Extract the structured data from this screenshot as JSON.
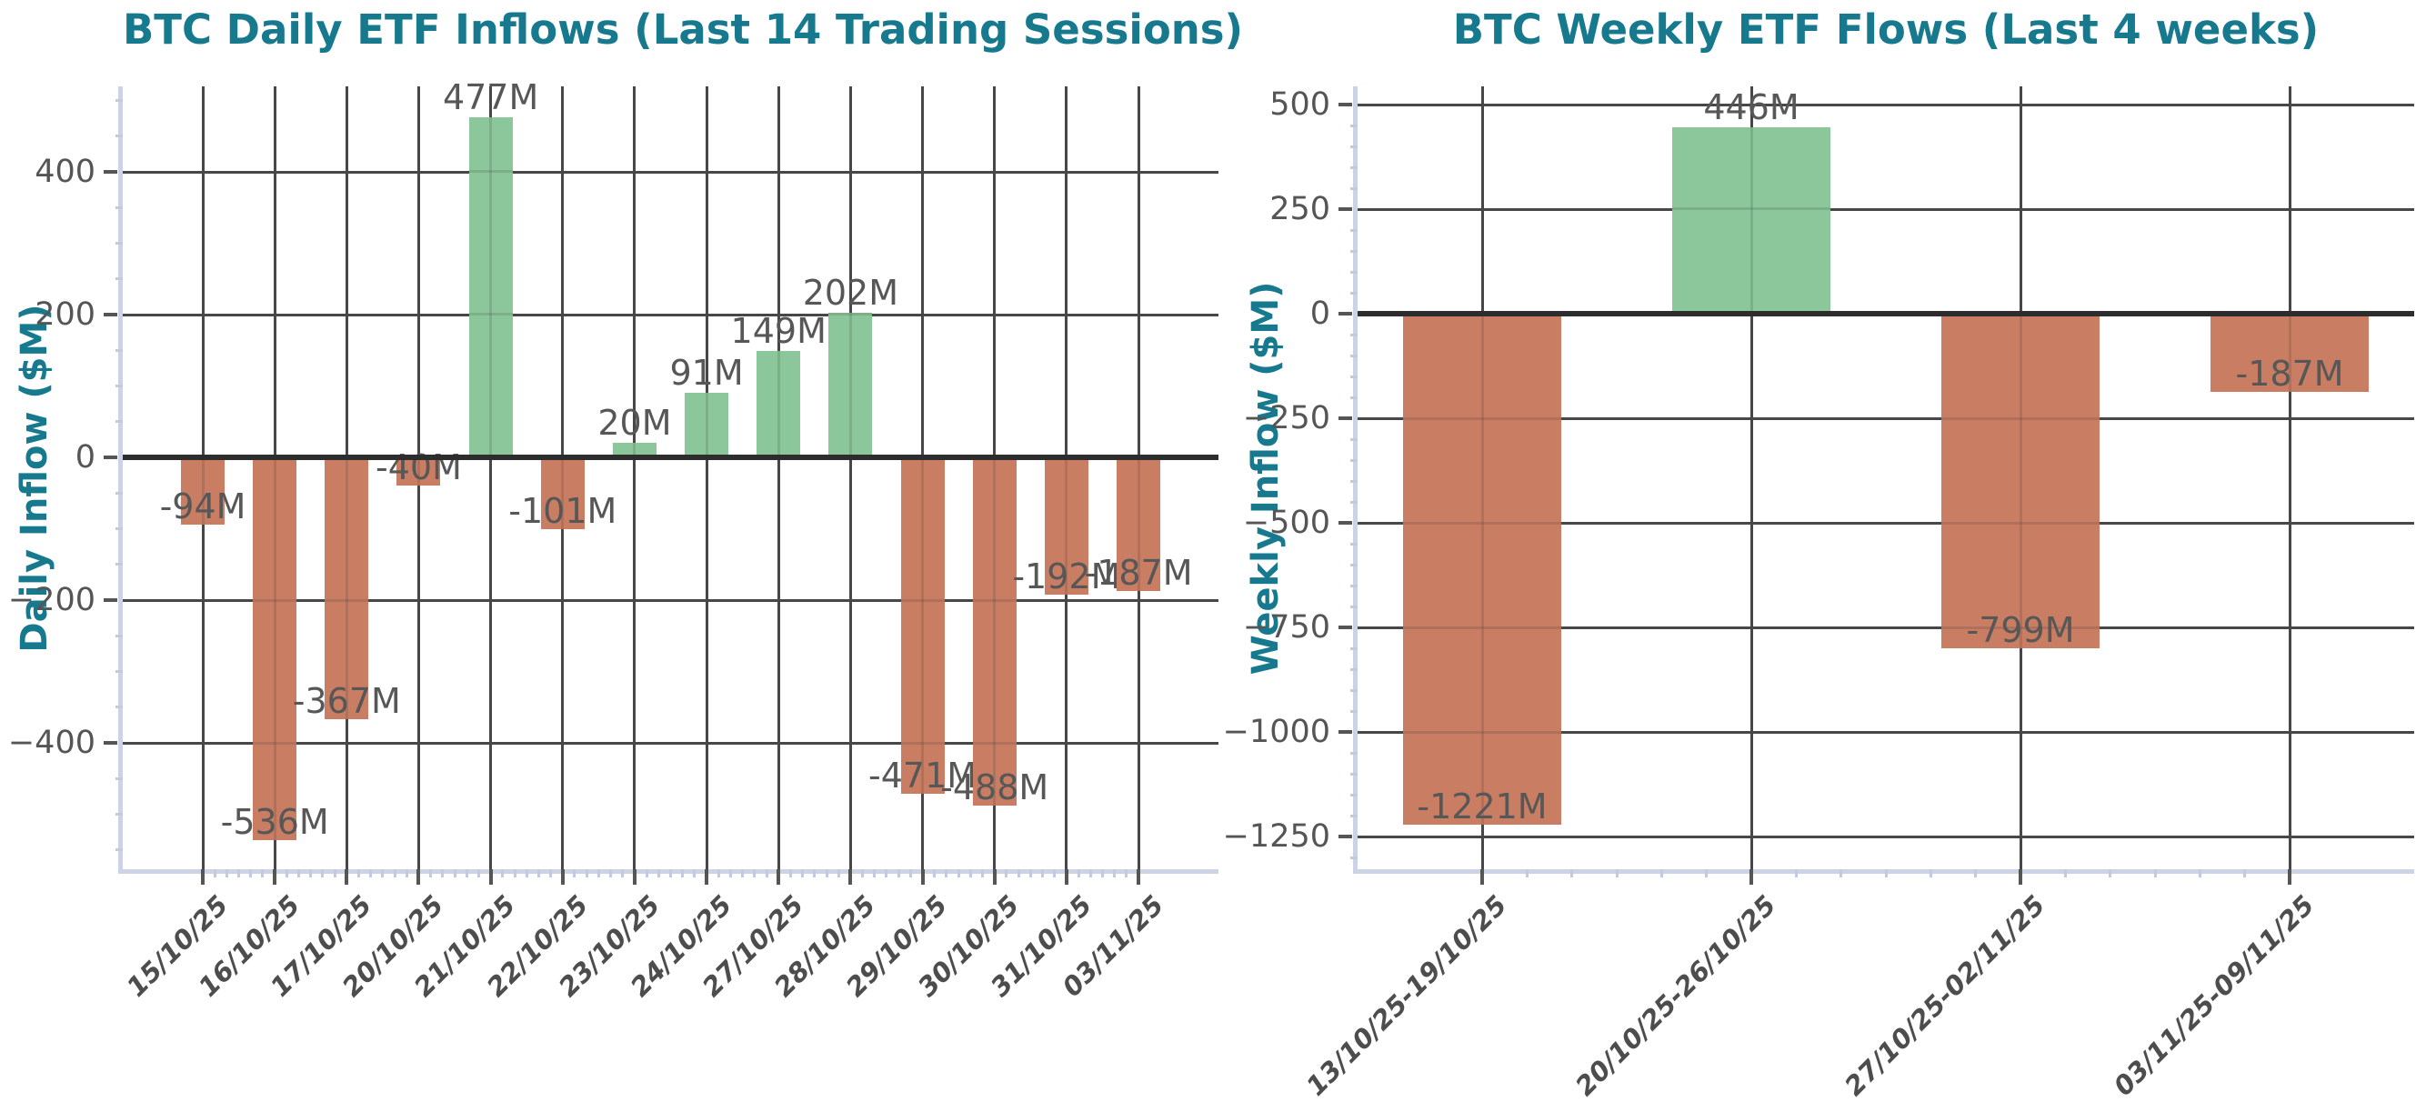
{
  "style": {
    "title_color": "#17798d",
    "axis_label_color": "#17798d",
    "grid_color": "#474747",
    "zero_line_color": "#2d2d2d",
    "spine_color": "#ccd3e6",
    "minor_tick_color": "#c3cade",
    "tick_label_color": "#555555",
    "bar_label_color": "#575757",
    "x_tick_label_color": "#4d4d4d",
    "background": "#ffffff",
    "positive_color": "#8cc79b",
    "negative_color": "#c97d62"
  },
  "chart_data": [
    {
      "type": "bar",
      "title": "BTC Daily ETF Inflows (Last 14 Trading Sessions)",
      "xlabel": "",
      "ylabel": "Daily Inflow ($M)",
      "categories": [
        "15/10/25",
        "16/10/25",
        "17/10/25",
        "20/10/25",
        "21/10/25",
        "22/10/25",
        "23/10/25",
        "24/10/25",
        "27/10/25",
        "28/10/25",
        "29/10/25",
        "30/10/25",
        "31/10/25",
        "03/11/25"
      ],
      "values": [
        -94,
        -536,
        -367,
        -40,
        477,
        -101,
        20,
        91,
        149,
        202,
        -471,
        -488,
        -192,
        -187
      ],
      "bar_labels": [
        "-94M",
        "-536M",
        "-367M",
        "-40M",
        "477M",
        "-101M",
        "20M",
        "91M",
        "149M",
        "202M",
        "-471M",
        "-488M",
        "-192M",
        "-187M"
      ],
      "y_ticks": [
        400,
        200,
        0,
        -200,
        -400
      ],
      "ylim": [
        -577,
        520
      ],
      "grid": true,
      "legend": false,
      "positive_color": "#8cc79b",
      "negative_color": "#c97d62"
    },
    {
      "type": "bar",
      "title": "BTC Weekly ETF Flows (Last 4 weeks)",
      "xlabel": "",
      "ylabel": "Weekly Inflow ($M)",
      "categories": [
        "13/10/25-19/10/25",
        "20/10/25-26/10/25",
        "27/10/25-02/11/25",
        "03/11/25-09/11/25"
      ],
      "values": [
        -1221,
        446,
        -799,
        -187
      ],
      "bar_labels": [
        "-1221M",
        "446M",
        "-799M",
        "-187M"
      ],
      "y_ticks": [
        500,
        250,
        0,
        -250,
        -500,
        -750,
        -1000,
        -1250
      ],
      "ylim": [
        -1328,
        543
      ],
      "grid": true,
      "legend": false,
      "positive_color": "#8cc79b",
      "negative_color": "#c97d62"
    }
  ]
}
